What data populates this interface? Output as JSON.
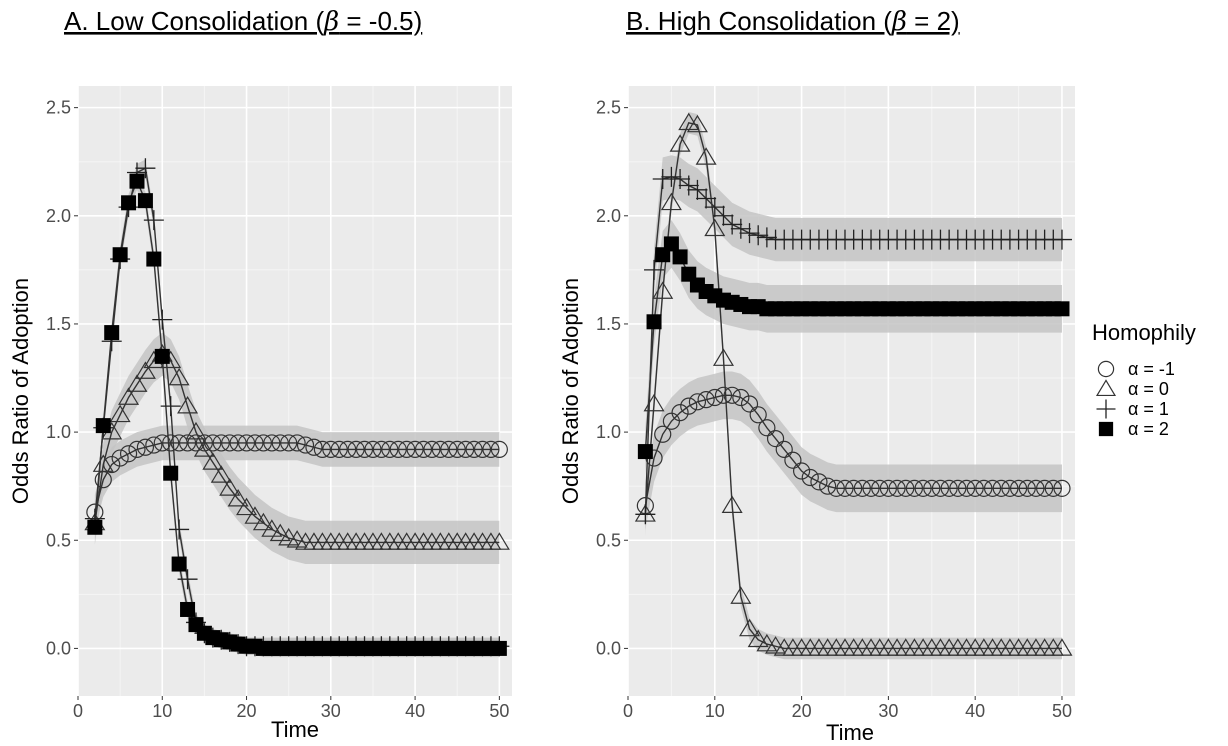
{
  "chart_data": [
    {
      "type": "line",
      "title": "A. Low Consolidation (",
      "title_symbol": "β",
      "title_rest": " = -0.5)",
      "xlabel": "Time",
      "ylabel": "Odds Ratio of Adoption",
      "xlim": [
        0,
        51.5
      ],
      "ylim": [
        -0.22,
        2.6
      ],
      "xticks": [
        0,
        10,
        20,
        30,
        40,
        50
      ],
      "xtick_labels": [
        "0",
        "10",
        "20",
        "30",
        "40",
        "50"
      ],
      "yticks": [
        0,
        0.5,
        1,
        1.5,
        2,
        2.5
      ],
      "ytick_labels": [
        "0.0",
        "0.5",
        "1.0",
        "1.5",
        "2.0",
        "2.5"
      ],
      "grid": true,
      "x": [
        2,
        3,
        4,
        5,
        6,
        7,
        8,
        9,
        10,
        11,
        12,
        13,
        14,
        15,
        16,
        17,
        18,
        19,
        20,
        21,
        22,
        23,
        24,
        25,
        26,
        27,
        28,
        29,
        30,
        31,
        32,
        33,
        34,
        35,
        36,
        37,
        38,
        39,
        40,
        41,
        42,
        43,
        44,
        45,
        46,
        47,
        48,
        49,
        50
      ],
      "series": [
        {
          "name": "α = -1",
          "marker": "circle",
          "band": 0.08,
          "values": [
            0.63,
            0.78,
            0.85,
            0.88,
            0.9,
            0.92,
            0.93,
            0.94,
            0.95,
            0.95,
            0.95,
            0.95,
            0.95,
            0.95,
            0.95,
            0.95,
            0.95,
            0.95,
            0.95,
            0.95,
            0.95,
            0.95,
            0.95,
            0.95,
            0.95,
            0.94,
            0.93,
            0.92,
            0.92,
            0.92,
            0.92,
            0.92,
            0.92,
            0.92,
            0.92,
            0.92,
            0.92,
            0.92,
            0.92,
            0.92,
            0.92,
            0.92,
            0.92,
            0.92,
            0.92,
            0.92,
            0.92,
            0.92,
            0.92
          ]
        },
        {
          "name": "α = 0",
          "marker": "triangle",
          "band": 0.1,
          "values": [
            0.58,
            0.85,
            1.0,
            1.08,
            1.16,
            1.22,
            1.28,
            1.33,
            1.36,
            1.33,
            1.25,
            1.12,
            1.0,
            0.92,
            0.86,
            0.8,
            0.74,
            0.69,
            0.65,
            0.61,
            0.58,
            0.55,
            0.53,
            0.51,
            0.5,
            0.49,
            0.49,
            0.49,
            0.49,
            0.49,
            0.49,
            0.49,
            0.49,
            0.49,
            0.49,
            0.49,
            0.49,
            0.49,
            0.49,
            0.49,
            0.49,
            0.49,
            0.49,
            0.49,
            0.49,
            0.49,
            0.49,
            0.49,
            0.49
          ]
        },
        {
          "name": "α = 1",
          "marker": "plus",
          "band": 0.04,
          "values": [
            0.6,
            1.02,
            1.42,
            1.8,
            2.04,
            2.2,
            2.22,
            1.98,
            1.52,
            1.12,
            0.55,
            0.32,
            0.12,
            0.07,
            0.05,
            0.04,
            0.03,
            0.02,
            0.01,
            0.01,
            0.01,
            0.01,
            0.01,
            0.01,
            0.01,
            0.01,
            0.01,
            0.01,
            0.01,
            0.01,
            0.01,
            0.01,
            0.01,
            0.01,
            0.01,
            0.01,
            0.01,
            0.01,
            0.01,
            0.01,
            0.01,
            0.01,
            0.01,
            0.01,
            0.01,
            0.01,
            0.01,
            0.01,
            0.01
          ]
        },
        {
          "name": "α = 2",
          "marker": "square",
          "band": 0.04,
          "values": [
            0.56,
            1.03,
            1.46,
            1.82,
            2.06,
            2.16,
            2.07,
            1.8,
            1.35,
            0.81,
            0.39,
            0.18,
            0.11,
            0.07,
            0.05,
            0.04,
            0.03,
            0.02,
            0.01,
            0.01,
            0.0,
            0.0,
            0.0,
            0.0,
            0.0,
            0.0,
            0.0,
            0.0,
            0.0,
            0.0,
            0.0,
            0.0,
            0.0,
            0.0,
            0.0,
            0.0,
            0.0,
            0.0,
            0.0,
            0.0,
            0.0,
            0.0,
            0.0,
            0.0,
            0.0,
            0.0,
            0.0,
            0.0,
            0.0
          ]
        }
      ]
    },
    {
      "type": "line",
      "title": "B. High Consolidation (",
      "title_symbol": "β",
      "title_rest": " = 2)",
      "xlabel": "Time",
      "ylabel": "Odds Ratio of Adoption",
      "xlim": [
        0,
        51.5
      ],
      "ylim": [
        -0.22,
        2.6
      ],
      "xticks": [
        0,
        10,
        20,
        30,
        40,
        50
      ],
      "xtick_labels": [
        "0",
        "10",
        "20",
        "30",
        "40",
        "50"
      ],
      "yticks": [
        0,
        0.5,
        1,
        1.5,
        2,
        2.5
      ],
      "ytick_labels": [
        "0.0",
        "0.5",
        "1.0",
        "1.5",
        "2.0",
        "2.5"
      ],
      "grid": true,
      "x": [
        2,
        3,
        4,
        5,
        6,
        7,
        8,
        9,
        10,
        11,
        12,
        13,
        14,
        15,
        16,
        17,
        18,
        19,
        20,
        21,
        22,
        23,
        24,
        25,
        26,
        27,
        28,
        29,
        30,
        31,
        32,
        33,
        34,
        35,
        36,
        37,
        38,
        39,
        40,
        41,
        42,
        43,
        44,
        45,
        46,
        47,
        48,
        49,
        50
      ],
      "series": [
        {
          "name": "α = -1",
          "marker": "circle",
          "band": 0.11,
          "values": [
            0.66,
            0.88,
            0.99,
            1.05,
            1.09,
            1.12,
            1.14,
            1.15,
            1.16,
            1.17,
            1.17,
            1.16,
            1.13,
            1.08,
            1.02,
            0.97,
            0.92,
            0.87,
            0.82,
            0.79,
            0.77,
            0.75,
            0.74,
            0.74,
            0.74,
            0.74,
            0.74,
            0.74,
            0.74,
            0.74,
            0.74,
            0.74,
            0.74,
            0.74,
            0.74,
            0.74,
            0.74,
            0.74,
            0.74,
            0.74,
            0.74,
            0.74,
            0.74,
            0.74,
            0.74,
            0.74,
            0.74,
            0.74,
            0.74
          ]
        },
        {
          "name": "α = 0",
          "marker": "triangle",
          "band": 0.05,
          "values": [
            0.62,
            1.13,
            1.65,
            2.06,
            2.33,
            2.43,
            2.42,
            2.27,
            1.94,
            1.34,
            0.66,
            0.24,
            0.09,
            0.04,
            0.02,
            0.01,
            0.0,
            0.0,
            0.0,
            0.0,
            0.0,
            0.0,
            0.0,
            0.0,
            0.0,
            0.0,
            0.0,
            0.0,
            0.0,
            0.0,
            0.0,
            0.0,
            0.0,
            0.0,
            0.0,
            0.0,
            0.0,
            0.0,
            0.0,
            0.0,
            0.0,
            0.0,
            0.0,
            0.0,
            0.0,
            0.0,
            0.0,
            0.0,
            0.0
          ]
        },
        {
          "name": "α = 1",
          "marker": "plus",
          "band": 0.1,
          "values": [
            0.62,
            1.75,
            2.17,
            2.18,
            2.17,
            2.14,
            2.12,
            2.08,
            2.04,
            2.0,
            1.96,
            1.94,
            1.92,
            1.91,
            1.9,
            1.89,
            1.89,
            1.89,
            1.89,
            1.89,
            1.89,
            1.89,
            1.89,
            1.89,
            1.89,
            1.89,
            1.89,
            1.89,
            1.89,
            1.89,
            1.89,
            1.89,
            1.89,
            1.89,
            1.89,
            1.89,
            1.89,
            1.89,
            1.89,
            1.89,
            1.89,
            1.89,
            1.89,
            1.89,
            1.89,
            1.89,
            1.89,
            1.89,
            1.89
          ]
        },
        {
          "name": "α = 2",
          "marker": "square",
          "band": 0.11,
          "values": [
            0.91,
            1.51,
            1.82,
            1.87,
            1.81,
            1.73,
            1.68,
            1.65,
            1.63,
            1.61,
            1.6,
            1.59,
            1.58,
            1.58,
            1.57,
            1.57,
            1.57,
            1.57,
            1.57,
            1.57,
            1.57,
            1.57,
            1.57,
            1.57,
            1.57,
            1.57,
            1.57,
            1.57,
            1.57,
            1.57,
            1.57,
            1.57,
            1.57,
            1.57,
            1.57,
            1.57,
            1.57,
            1.57,
            1.57,
            1.57,
            1.57,
            1.57,
            1.57,
            1.57,
            1.57,
            1.57,
            1.57,
            1.57,
            1.57
          ]
        }
      ]
    }
  ],
  "legend": {
    "title": "Homophily",
    "items": [
      {
        "label": "α = -1",
        "marker": "circle"
      },
      {
        "label": "α = 0",
        "marker": "triangle"
      },
      {
        "label": "α = 1",
        "marker": "plus"
      },
      {
        "label": "α = 2",
        "marker": "square"
      }
    ]
  },
  "colors": {
    "panel_bg": "#ebebeb",
    "grid_major": "#ffffff",
    "grid_minor": "#f5f5f5",
    "band": "#c4c4c4",
    "line": "#333333",
    "marker": "#000000"
  }
}
